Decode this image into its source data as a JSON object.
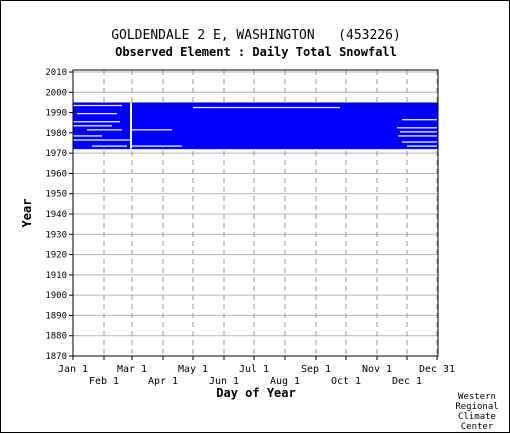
{
  "chart_data": {
    "type": "heatmap",
    "title": "GOLDENDALE 2 E, WASHINGTON   (453226)",
    "subtitle": "Observed Element : Daily Total Snowfall",
    "xlabel": "Day of Year",
    "ylabel": "Year",
    "xlim": [
      1,
      366
    ],
    "ylim": [
      1870,
      2011
    ],
    "x_ticks_top_row": [
      {
        "day": 1,
        "label": "Jan 1"
      },
      {
        "day": 60,
        "label": "Mar 1"
      },
      {
        "day": 121,
        "label": "May 1"
      },
      {
        "day": 182,
        "label": "Jul 1"
      },
      {
        "day": 244,
        "label": "Sep 1"
      },
      {
        "day": 305,
        "label": "Nov 1"
      },
      {
        "day": 365,
        "label": "Dec 31"
      }
    ],
    "x_ticks_bottom_row": [
      {
        "day": 32,
        "label": "Feb 1"
      },
      {
        "day": 91,
        "label": "Apr 1"
      },
      {
        "day": 152,
        "label": "Jun 1"
      },
      {
        "day": 213,
        "label": "Aug 1"
      },
      {
        "day": 274,
        "label": "Oct 1"
      },
      {
        "day": 335,
        "label": "Dec 1"
      }
    ],
    "y_ticks": [
      2010,
      2000,
      1990,
      1980,
      1970,
      1960,
      1950,
      1940,
      1930,
      1920,
      1910,
      1900,
      1890,
      1880,
      1870
    ],
    "grid": true,
    "series": [
      {
        "color": "#0000ff",
        "regions": [
          {
            "day_start": 1,
            "day_end": 365,
            "year_start": 1972,
            "year_end": 1994
          }
        ],
        "gaps": [
          {
            "day_start": 1,
            "day_end": 50,
            "year": 1993
          },
          {
            "day_start": 5,
            "day_end": 45,
            "year": 1989
          },
          {
            "day_start": 1,
            "day_end": 48,
            "year": 1985
          },
          {
            "day_start": 1,
            "day_end": 40,
            "year": 1983
          },
          {
            "day_start": 15,
            "day_end": 50,
            "year": 1981
          },
          {
            "day_start": 1,
            "day_end": 30,
            "year": 1978
          },
          {
            "day_start": 1,
            "day_end": 58,
            "year": 1976
          },
          {
            "day_start": 20,
            "day_end": 55,
            "year": 1973
          },
          {
            "day_start": 58,
            "day_end": 60,
            "year_start": 1972,
            "year_end": 1994
          },
          {
            "day_start": 60,
            "day_end": 100,
            "year": 1981
          },
          {
            "day_start": 60,
            "day_end": 110,
            "year": 1973
          },
          {
            "day_start": 121,
            "day_end": 268,
            "year": 1992
          },
          {
            "day_start": 330,
            "day_end": 365,
            "year": 1986
          },
          {
            "day_start": 325,
            "day_end": 365,
            "year": 1982
          },
          {
            "day_start": 328,
            "day_end": 365,
            "year": 1980
          },
          {
            "day_start": 326,
            "day_end": 365,
            "year": 1978
          },
          {
            "day_start": 330,
            "day_end": 365,
            "year": 1975
          },
          {
            "day_start": 335,
            "day_end": 365,
            "year": 1973
          }
        ]
      }
    ]
  },
  "footer": {
    "credit_lines": [
      "Western",
      "Regional",
      "Climate",
      "Center"
    ]
  }
}
